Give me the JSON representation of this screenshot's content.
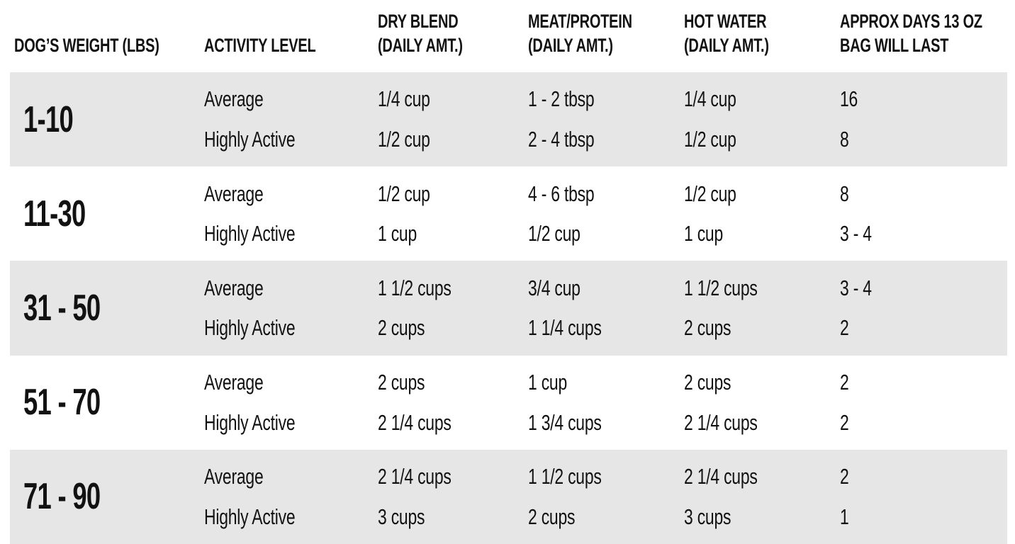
{
  "colors": {
    "row_shaded_bg": "#e6e6e6",
    "row_plain_bg": "#ffffff",
    "text": "#121212"
  },
  "table": {
    "headers": [
      [
        "DOG’S WEIGHT (LBS)"
      ],
      [
        "ACTIVITY LEVEL"
      ],
      [
        "DRY BLEND",
        "(DAILY AMT.)"
      ],
      [
        "MEAT/PROTEIN",
        "(DAILY AMT.)"
      ],
      [
        "HOT WATER",
        "(DAILY AMT.)"
      ],
      [
        "APPROX DAYS 13 OZ",
        "BAG WILL LAST"
      ]
    ],
    "rows": [
      {
        "weight": "1-10",
        "entries": [
          {
            "activity": "Average",
            "dry_blend": "1/4 cup",
            "meat_protein": "1 - 2 tbsp",
            "hot_water": "1/4 cup",
            "days_bag_lasts": "16"
          },
          {
            "activity": "Highly Active",
            "dry_blend": "1/2 cup",
            "meat_protein": "2 - 4 tbsp",
            "hot_water": "1/2 cup",
            "days_bag_lasts": "8"
          }
        ]
      },
      {
        "weight": "11-30",
        "entries": [
          {
            "activity": "Average",
            "dry_blend": "1/2 cup",
            "meat_protein": "4 - 6 tbsp",
            "hot_water": "1/2 cup",
            "days_bag_lasts": "8"
          },
          {
            "activity": "Highly Active",
            "dry_blend": "1 cup",
            "meat_protein": "1/2 cup",
            "hot_water": "1 cup",
            "days_bag_lasts": "3 - 4"
          }
        ]
      },
      {
        "weight": "31 - 50",
        "entries": [
          {
            "activity": "Average",
            "dry_blend": "1 1/2 cups",
            "meat_protein": "3/4 cup",
            "hot_water": "1 1/2 cups",
            "days_bag_lasts": "3 - 4"
          },
          {
            "activity": "Highly Active",
            "dry_blend": "2 cups",
            "meat_protein": "1 1/4 cups",
            "hot_water": "2 cups",
            "days_bag_lasts": "2"
          }
        ]
      },
      {
        "weight": "51 - 70",
        "entries": [
          {
            "activity": "Average",
            "dry_blend": "2 cups",
            "meat_protein": "1 cup",
            "hot_water": "2 cups",
            "days_bag_lasts": "2"
          },
          {
            "activity": "Highly Active",
            "dry_blend": "2 1/4 cups",
            "meat_protein": "1 3/4 cups",
            "hot_water": "2 1/4 cups",
            "days_bag_lasts": "2"
          }
        ]
      },
      {
        "weight": "71 - 90",
        "entries": [
          {
            "activity": "Average",
            "dry_blend": "2 1/4 cups",
            "meat_protein": "1 1/2 cups",
            "hot_water": "2 1/4 cups",
            "days_bag_lasts": "2"
          },
          {
            "activity": "Highly Active",
            "dry_blend": "3 cups",
            "meat_protein": "2 cups",
            "hot_water": "3 cups",
            "days_bag_lasts": "1"
          }
        ]
      }
    ]
  },
  "chart_data": {
    "type": "table",
    "title": "Dog feeding guide",
    "columns": [
      "DOG’S WEIGHT (LBS)",
      "ACTIVITY LEVEL",
      "DRY BLEND (DAILY AMT.)",
      "MEAT/PROTEIN (DAILY AMT.)",
      "HOT WATER (DAILY AMT.)",
      "APPROX DAYS 13 OZ BAG WILL LAST"
    ],
    "rows": [
      [
        "1-10",
        "Average",
        "1/4 cup",
        "1 - 2 tbsp",
        "1/4 cup",
        "16"
      ],
      [
        "1-10",
        "Highly Active",
        "1/2 cup",
        "2 - 4 tbsp",
        "1/2 cup",
        "8"
      ],
      [
        "11-30",
        "Average",
        "1/2 cup",
        "4 - 6 tbsp",
        "1/2 cup",
        "8"
      ],
      [
        "11-30",
        "Highly Active",
        "1 cup",
        "1/2 cup",
        "1 cup",
        "3 - 4"
      ],
      [
        "31 - 50",
        "Average",
        "1 1/2 cups",
        "3/4 cup",
        "1 1/2 cups",
        "3 - 4"
      ],
      [
        "31 - 50",
        "Highly Active",
        "2 cups",
        "1 1/4 cups",
        "2 cups",
        "2"
      ],
      [
        "51 - 70",
        "Average",
        "2 cups",
        "1 cup",
        "2 cups",
        "2"
      ],
      [
        "51 - 70",
        "Highly Active",
        "2 1/4 cups",
        "1 3/4 cups",
        "2 1/4 cups",
        "2"
      ],
      [
        "71 - 90",
        "Average",
        "2 1/4 cups",
        "1 1/2 cups",
        "2 1/4 cups",
        "2"
      ],
      [
        "71 - 90",
        "Highly Active",
        "3 cups",
        "2 cups",
        "3 cups",
        "1"
      ]
    ],
    "layout": {
      "shaded_row_groups": [
        0,
        2,
        4
      ],
      "grid": false,
      "legend": "none"
    }
  }
}
